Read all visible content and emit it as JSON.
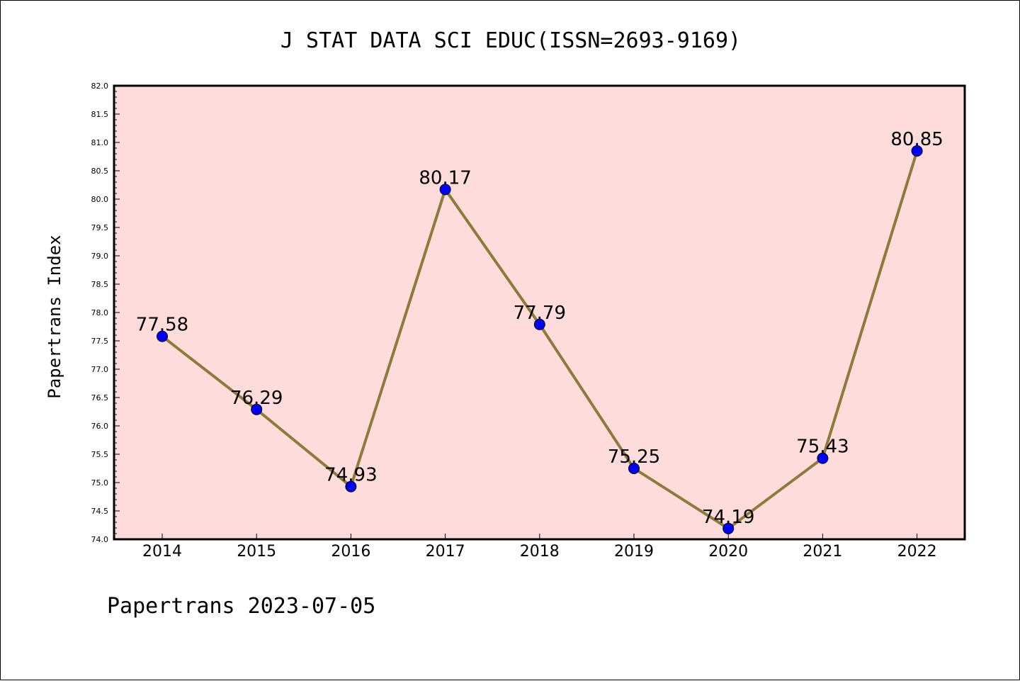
{
  "chart_data": {
    "type": "line",
    "title": "J STAT DATA SCI EDUC(ISSN=2693-9169)",
    "xlabel": "",
    "ylabel": "Papertrans Index",
    "ylim": [
      74.0,
      82.0
    ],
    "yticks": [
      "74.0",
      "74.5",
      "75.0",
      "75.5",
      "76.0",
      "76.5",
      "77.0",
      "77.5",
      "78.0",
      "78.5",
      "79.0",
      "79.5",
      "80.0",
      "80.5",
      "81.0",
      "81.5",
      "82.0"
    ],
    "categories": [
      "2014",
      "2015",
      "2016",
      "2017",
      "2018",
      "2019",
      "2020",
      "2021",
      "2022"
    ],
    "series": [
      {
        "values": [
          77.58,
          76.29,
          74.93,
          80.17,
          77.79,
          75.25,
          74.19,
          75.43,
          80.85
        ],
        "labels": [
          "77.58",
          "76.29",
          "74.93",
          "80.17",
          "77.79",
          "75.25",
          "74.19",
          "75.43",
          "80.85"
        ]
      }
    ],
    "grid": false,
    "colors": {
      "plot_bg": "#fddcdb",
      "line": "#8e7b3a",
      "marker": "#0000ff"
    }
  },
  "footer": "Papertrans 2023-07-05"
}
